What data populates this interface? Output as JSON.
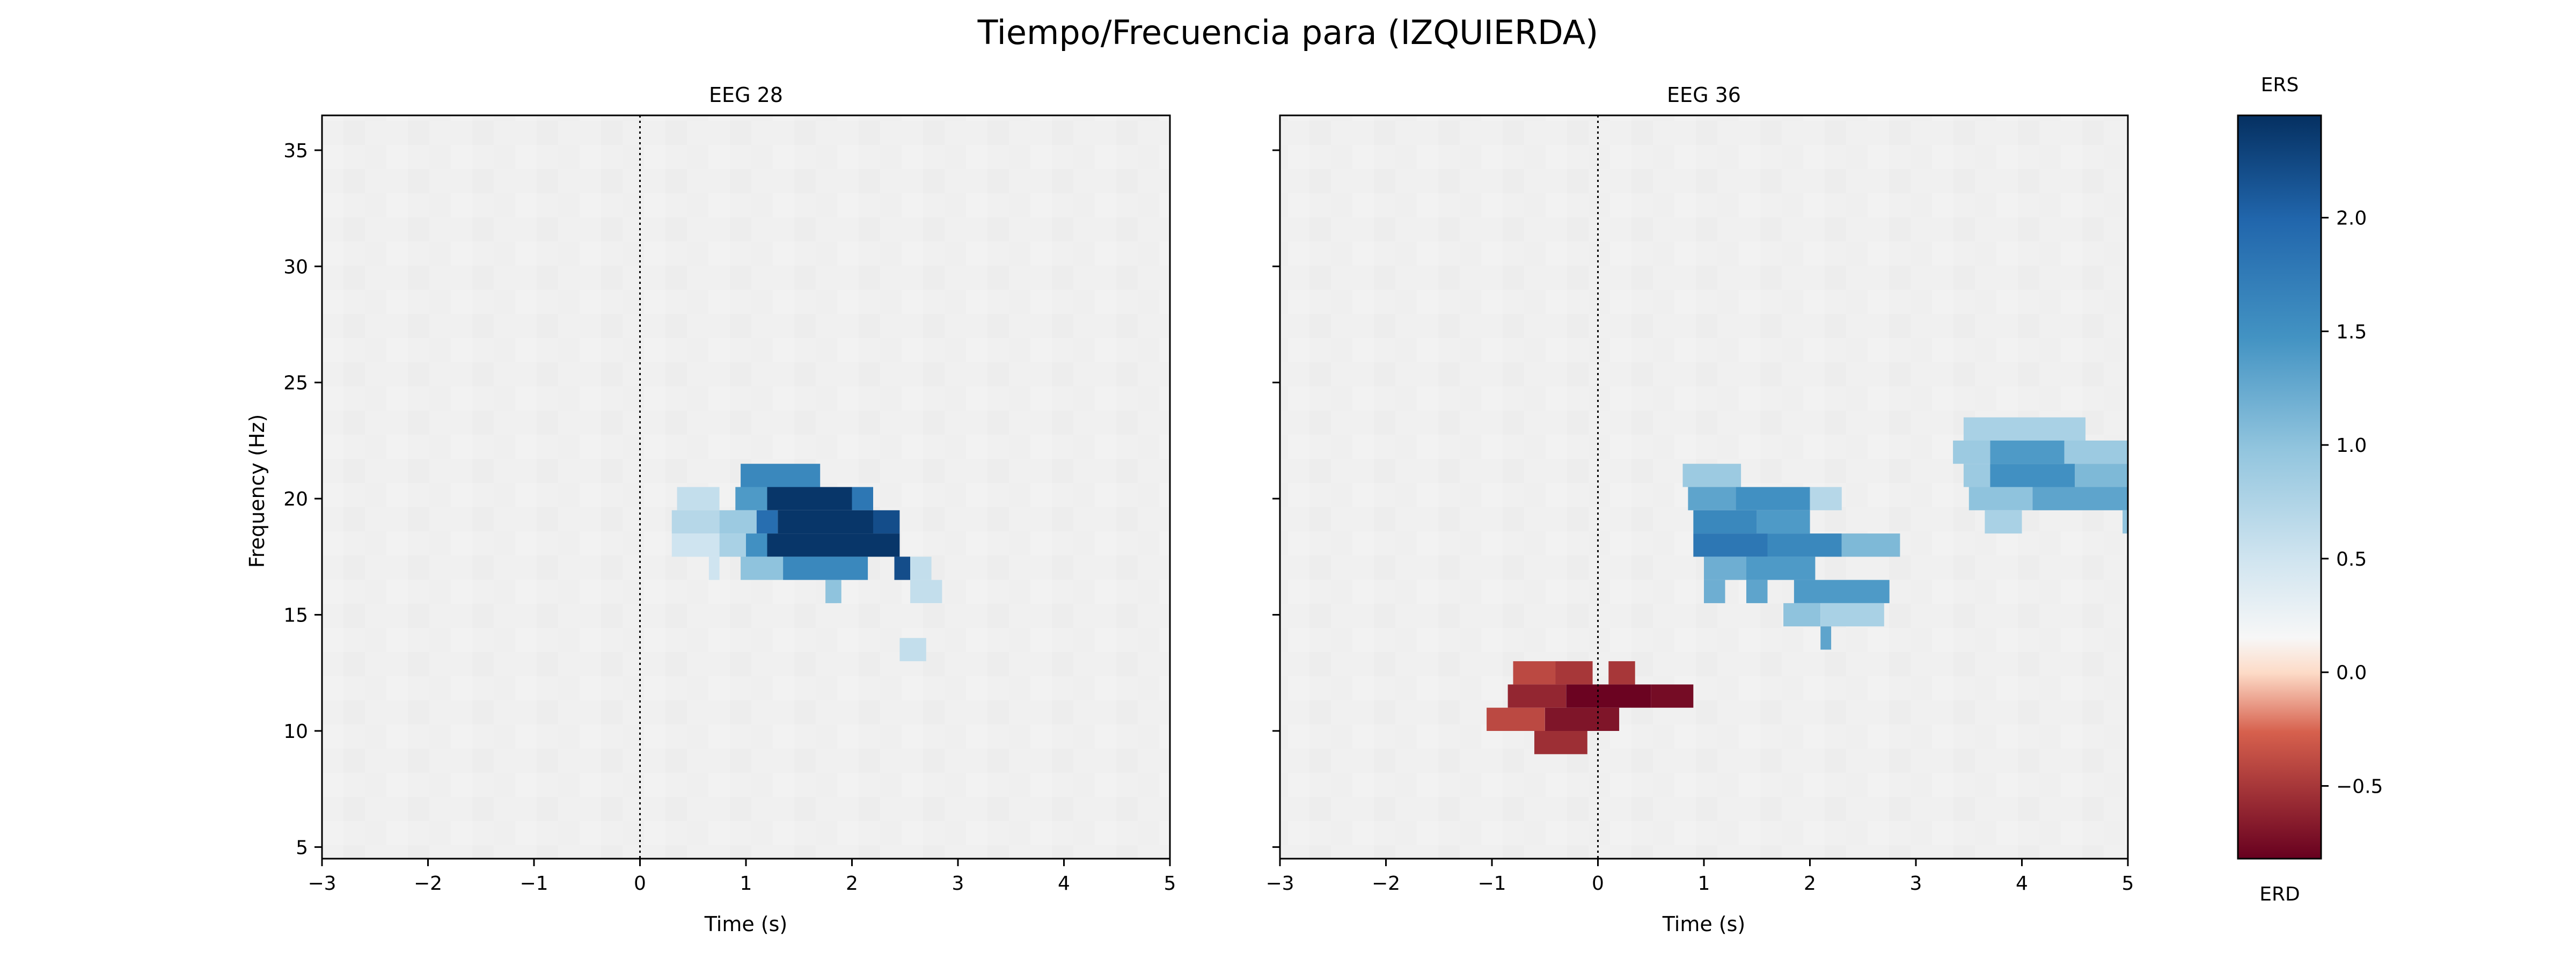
{
  "figure": {
    "suptitle": "Tiempo/Frecuencia para (IZQUIERDA)"
  },
  "chart_data": [
    {
      "type": "heatmap",
      "title": "EEG 28",
      "xlabel": "Time (s)",
      "ylabel": "Frequency (Hz)",
      "xlim": [
        -3,
        5
      ],
      "ylim": [
        4.5,
        36.5
      ],
      "xticks": [
        "−3",
        "−2",
        "−1",
        "0",
        "1",
        "2",
        "3",
        "4",
        "5"
      ],
      "yticks": [
        "5",
        "10",
        "15",
        "20",
        "25",
        "30",
        "35"
      ],
      "event_line_x": 0,
      "significant_regions": [
        {
          "t0": 0.35,
          "t1": 0.75,
          "f0": 19.5,
          "f1": 20.5,
          "value": 0.6
        },
        {
          "t0": 0.3,
          "t1": 0.75,
          "f0": 18.5,
          "f1": 19.5,
          "value": 0.7
        },
        {
          "t0": 0.3,
          "t1": 0.75,
          "f0": 17.5,
          "f1": 18.5,
          "value": 0.5
        },
        {
          "t0": 0.65,
          "t1": 0.75,
          "f0": 16.5,
          "f1": 17.5,
          "value": 0.5
        },
        {
          "t0": 0.95,
          "t1": 1.7,
          "f0": 20.5,
          "f1": 21.5,
          "value": 1.6
        },
        {
          "t0": 0.9,
          "t1": 1.2,
          "f0": 19.5,
          "f1": 20.5,
          "value": 1.4
        },
        {
          "t0": 1.2,
          "t1": 2.0,
          "f0": 19.5,
          "f1": 20.5,
          "value": 2.4
        },
        {
          "t0": 2.0,
          "t1": 2.2,
          "f0": 19.5,
          "f1": 20.5,
          "value": 1.8
        },
        {
          "t0": 0.75,
          "t1": 1.1,
          "f0": 18.5,
          "f1": 19.5,
          "value": 0.9
        },
        {
          "t0": 1.1,
          "t1": 1.3,
          "f0": 18.5,
          "f1": 19.5,
          "value": 1.9
        },
        {
          "t0": 1.3,
          "t1": 2.2,
          "f0": 18.5,
          "f1": 19.5,
          "value": 2.4
        },
        {
          "t0": 2.2,
          "t1": 2.45,
          "f0": 18.5,
          "f1": 19.5,
          "value": 2.2
        },
        {
          "t0": 0.75,
          "t1": 1.0,
          "f0": 17.5,
          "f1": 18.5,
          "value": 0.8
        },
        {
          "t0": 1.0,
          "t1": 1.2,
          "f0": 17.5,
          "f1": 18.5,
          "value": 1.5
        },
        {
          "t0": 1.2,
          "t1": 2.45,
          "f0": 17.5,
          "f1": 18.5,
          "value": 2.4
        },
        {
          "t0": 0.95,
          "t1": 1.35,
          "f0": 16.5,
          "f1": 17.5,
          "value": 1.0
        },
        {
          "t0": 1.35,
          "t1": 2.15,
          "f0": 16.5,
          "f1": 17.5,
          "value": 1.6
        },
        {
          "t0": 2.4,
          "t1": 2.55,
          "f0": 16.5,
          "f1": 17.5,
          "value": 2.2
        },
        {
          "t0": 2.55,
          "t1": 2.75,
          "f0": 16.5,
          "f1": 17.5,
          "value": 0.6
        },
        {
          "t0": 1.75,
          "t1": 1.9,
          "f0": 15.5,
          "f1": 16.5,
          "value": 1.0
        },
        {
          "t0": 2.55,
          "t1": 2.85,
          "f0": 15.5,
          "f1": 16.5,
          "value": 0.6
        },
        {
          "t0": 2.45,
          "t1": 2.7,
          "f0": 13.0,
          "f1": 14.0,
          "value": 0.6
        }
      ]
    },
    {
      "type": "heatmap",
      "title": "EEG 36",
      "xlabel": "Time (s)",
      "ylabel": "",
      "xlim": [
        -3,
        5
      ],
      "ylim": [
        4.5,
        36.5
      ],
      "xticks": [
        "−3",
        "−2",
        "−1",
        "0",
        "1",
        "2",
        "3",
        "4",
        "5"
      ],
      "yticks": [],
      "event_line_x": 0,
      "significant_regions": [
        {
          "t0": -0.8,
          "t1": -0.4,
          "f0": 12.0,
          "f1": 13.0,
          "value": -0.4
        },
        {
          "t0": -0.4,
          "t1": -0.05,
          "f0": 12.0,
          "f1": 13.0,
          "value": -0.5
        },
        {
          "t0": 0.1,
          "t1": 0.35,
          "f0": 12.0,
          "f1": 13.0,
          "value": -0.5
        },
        {
          "t0": -0.85,
          "t1": -0.3,
          "f0": 11.0,
          "f1": 12.0,
          "value": -0.6
        },
        {
          "t0": -0.3,
          "t1": 0.5,
          "f0": 11.0,
          "f1": 12.0,
          "value": -0.8
        },
        {
          "t0": 0.5,
          "t1": 0.9,
          "f0": 11.0,
          "f1": 12.0,
          "value": -0.75
        },
        {
          "t0": -1.05,
          "t1": -0.5,
          "f0": 10.0,
          "f1": 11.0,
          "value": -0.4
        },
        {
          "t0": -0.5,
          "t1": 0.2,
          "f0": 10.0,
          "f1": 11.0,
          "value": -0.7
        },
        {
          "t0": -0.6,
          "t1": -0.1,
          "f0": 9.0,
          "f1": 10.0,
          "value": -0.55
        },
        {
          "t0": 0.8,
          "t1": 1.35,
          "f0": 20.5,
          "f1": 21.5,
          "value": 0.9
        },
        {
          "t0": 0.85,
          "t1": 1.3,
          "f0": 19.5,
          "f1": 20.5,
          "value": 1.3
        },
        {
          "t0": 1.3,
          "t1": 2.0,
          "f0": 19.5,
          "f1": 20.5,
          "value": 1.5
        },
        {
          "t0": 2.0,
          "t1": 2.3,
          "f0": 19.5,
          "f1": 20.5,
          "value": 0.7
        },
        {
          "t0": 0.9,
          "t1": 1.5,
          "f0": 18.5,
          "f1": 19.5,
          "value": 1.6
        },
        {
          "t0": 1.5,
          "t1": 2.0,
          "f0": 18.5,
          "f1": 19.5,
          "value": 1.4
        },
        {
          "t0": 0.9,
          "t1": 1.6,
          "f0": 17.5,
          "f1": 18.5,
          "value": 1.8
        },
        {
          "t0": 1.6,
          "t1": 2.3,
          "f0": 17.5,
          "f1": 18.5,
          "value": 1.6
        },
        {
          "t0": 2.3,
          "t1": 2.85,
          "f0": 17.5,
          "f1": 18.5,
          "value": 1.1
        },
        {
          "t0": 1.0,
          "t1": 1.4,
          "f0": 16.5,
          "f1": 17.5,
          "value": 1.2
        },
        {
          "t0": 1.4,
          "t1": 2.05,
          "f0": 16.5,
          "f1": 17.5,
          "value": 1.4
        },
        {
          "t0": 1.0,
          "t1": 1.2,
          "f0": 15.5,
          "f1": 16.5,
          "value": 1.2
        },
        {
          "t0": 1.4,
          "t1": 1.6,
          "f0": 15.5,
          "f1": 16.5,
          "value": 1.3
        },
        {
          "t0": 1.85,
          "t1": 2.75,
          "f0": 15.5,
          "f1": 16.5,
          "value": 1.4
        },
        {
          "t0": 1.75,
          "t1": 2.1,
          "f0": 14.5,
          "f1": 15.5,
          "value": 1.0
        },
        {
          "t0": 2.1,
          "t1": 2.7,
          "f0": 14.5,
          "f1": 15.5,
          "value": 0.8
        },
        {
          "t0": 2.1,
          "t1": 2.2,
          "f0": 13.5,
          "f1": 14.5,
          "value": 1.3
        },
        {
          "t0": 3.45,
          "t1": 4.6,
          "f0": 22.5,
          "f1": 23.5,
          "value": 0.8
        },
        {
          "t0": 3.35,
          "t1": 3.7,
          "f0": 21.5,
          "f1": 22.5,
          "value": 0.9
        },
        {
          "t0": 3.7,
          "t1": 4.4,
          "f0": 21.5,
          "f1": 22.5,
          "value": 1.4
        },
        {
          "t0": 4.4,
          "t1": 5.0,
          "f0": 21.5,
          "f1": 22.5,
          "value": 0.9
        },
        {
          "t0": 3.45,
          "t1": 3.7,
          "f0": 20.5,
          "f1": 21.5,
          "value": 0.9
        },
        {
          "t0": 3.7,
          "t1": 4.5,
          "f0": 20.5,
          "f1": 21.5,
          "value": 1.5
        },
        {
          "t0": 4.5,
          "t1": 5.0,
          "f0": 20.5,
          "f1": 21.5,
          "value": 1.1
        },
        {
          "t0": 3.5,
          "t1": 4.1,
          "f0": 19.5,
          "f1": 20.5,
          "value": 1.0
        },
        {
          "t0": 4.1,
          "t1": 5.0,
          "f0": 19.5,
          "f1": 20.5,
          "value": 1.3
        },
        {
          "t0": 3.65,
          "t1": 4.0,
          "f0": 18.5,
          "f1": 19.5,
          "value": 0.8
        },
        {
          "t0": 4.95,
          "t1": 5.0,
          "f0": 18.5,
          "f1": 19.5,
          "value": 1.0
        }
      ]
    }
  ],
  "colorbar": {
    "top_label": "ERS",
    "bottom_label": "ERD",
    "vmin": -0.82,
    "vmax": 2.45,
    "ticks": [
      {
        "value": 2.0,
        "label": "2.0"
      },
      {
        "value": 1.5,
        "label": "1.5"
      },
      {
        "value": 1.0,
        "label": "1.0"
      },
      {
        "value": 0.5,
        "label": "0.5"
      },
      {
        "value": 0.0,
        "label": "0.0"
      },
      {
        "value": -0.5,
        "label": "−0.5"
      }
    ],
    "colormap": "RdBu"
  },
  "colors": {
    "background_cell": "#f0f0f0",
    "event_line": "#000000"
  }
}
